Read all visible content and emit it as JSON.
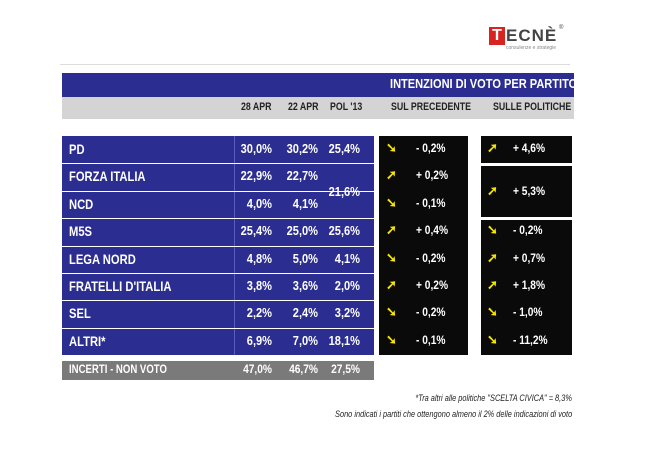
{
  "logo": {
    "letter": "T",
    "rest": "ECNÈ",
    "reg": "®",
    "tagline": "consulenze e strategie"
  },
  "header": {
    "title": "INTENZIONI DI VOTO PER PARTITO",
    "col_28apr": "28 APR",
    "col_22apr": "22 APR",
    "col_pol13": "POL '13",
    "col_sul_precedente": "SUL PRECEDENTE",
    "col_sulle_politiche": "SULLE POLITICHE"
  },
  "rows": [
    {
      "party": "PD",
      "v28": "30,0%",
      "v22": "30,2%",
      "pol": "25,4%",
      "prec_dir": "down",
      "prec": "- 0,2%",
      "poli_dir": "up",
      "poli": "+ 4,6%"
    },
    {
      "party": "FORZA ITALIA",
      "v28": "22,9%",
      "v22": "22,7%",
      "pol": "",
      "prec_dir": "up",
      "prec": "+ 0,2%",
      "poli_dir": "",
      "poli": ""
    },
    {
      "party": "NCD",
      "v28": "4,0%",
      "v22": "4,1%",
      "pol": "",
      "prec_dir": "down",
      "prec": "- 0,1%",
      "poli_dir": "",
      "poli": ""
    },
    {
      "party": "M5S",
      "v28": "25,4%",
      "v22": "25,0%",
      "pol": "25,6%",
      "prec_dir": "up",
      "prec": "+ 0,4%",
      "poli_dir": "down",
      "poli": "- 0,2%"
    },
    {
      "party": "LEGA NORD",
      "v28": "4,8%",
      "v22": "5,0%",
      "pol": "4,1%",
      "prec_dir": "down",
      "prec": "- 0,2%",
      "poli_dir": "up",
      "poli": "+ 0,7%"
    },
    {
      "party": "FRATELLI D'ITALIA",
      "v28": "3,8%",
      "v22": "3,6%",
      "pol": "2,0%",
      "prec_dir": "up",
      "prec": "+ 0,2%",
      "poli_dir": "up",
      "poli": "+ 1,8%"
    },
    {
      "party": "SEL",
      "v28": "2,2%",
      "v22": "2,4%",
      "pol": "3,2%",
      "prec_dir": "down",
      "prec": "- 0,2%",
      "poli_dir": "down",
      "poli": "- 1,0%"
    },
    {
      "party": "ALTRI*",
      "v28": "6,9%",
      "v22": "7,0%",
      "pol": "18,1%",
      "prec_dir": "down",
      "prec": "- 0,1%",
      "poli_dir": "down",
      "poli": "- 11,2%"
    }
  ],
  "merged": {
    "pol": "21,6%",
    "poli_dir": "up",
    "poli": "+ 5,3%"
  },
  "incerti": {
    "label": "INCERTI - NON VOTO",
    "v28": "47,0%",
    "v22": "46,7%",
    "pol": "27,5%"
  },
  "notes": {
    "line1": "*Tra altri alle politiche \"SCELTA CIVICA\" = 8,3%",
    "line2": "Sono indicati i partiti che ottengono almeno il 2% delle indicazioni di voto"
  },
  "colors": {
    "band": "#2b2d91",
    "sub": "#d4d4d4",
    "black": "#0a0a0a",
    "arrow": "#f5e600",
    "incerti": "#7a7a7a",
    "logo_red": "#d8231f"
  },
  "icons": {
    "up": "arrow-up-right-icon",
    "down": "arrow-down-right-icon"
  }
}
